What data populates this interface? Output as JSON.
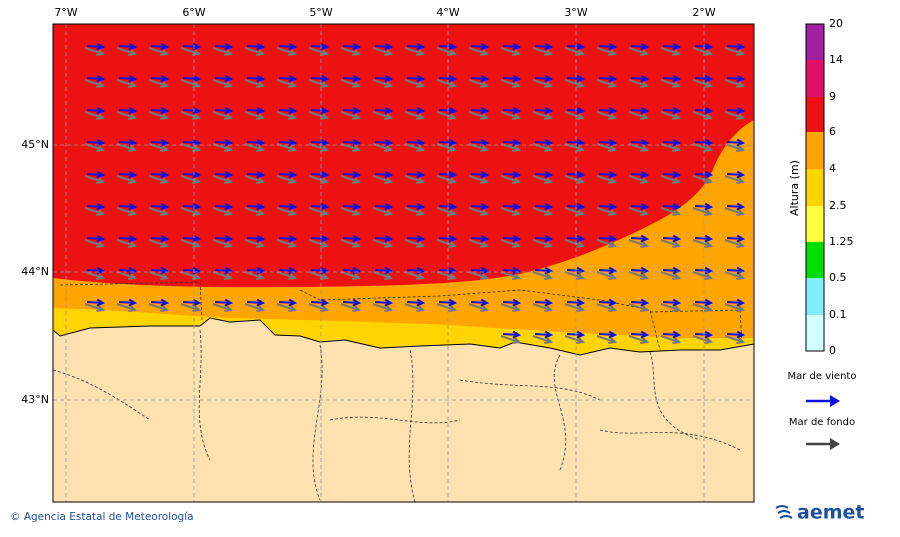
{
  "map": {
    "lon_labels": [
      "7°W",
      "6°W",
      "5°W",
      "4°W",
      "3°W",
      "2°W"
    ],
    "lat_labels": [
      "45°N",
      "44°N",
      "43°N"
    ],
    "colorbar": {
      "title": "Altura (m)",
      "labels": [
        "20",
        "14",
        "9",
        "6",
        "4",
        "2.5",
        "1.25",
        "0.5",
        "0.1",
        "0"
      ]
    }
  },
  "legend": {
    "wind_sea": "Mar de viento",
    "swell": "Mar de fondo"
  },
  "footer": {
    "credit": "© Agencia Estatal de Meteorología",
    "logo": "aemet"
  }
}
